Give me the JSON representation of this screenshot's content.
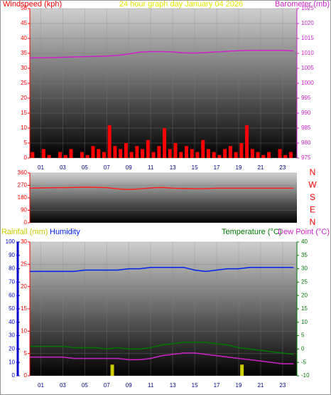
{
  "chart_data": [
    {
      "type": "combo",
      "title": "24 hour graph day   January 04 2026",
      "xlim": [
        0,
        24.3
      ],
      "xticks": [
        {
          "value": 1,
          "label": "01"
        },
        {
          "value": 3,
          "label": "03"
        },
        {
          "value": 5,
          "label": "05"
        },
        {
          "value": 7,
          "label": "07"
        },
        {
          "value": 9,
          "label": "09"
        },
        {
          "value": 11,
          "label": "11"
        },
        {
          "value": 13,
          "label": "13"
        },
        {
          "value": 15,
          "label": "15"
        },
        {
          "value": 17,
          "label": "17"
        },
        {
          "value": 19,
          "label": "19"
        },
        {
          "value": 21,
          "label": "21"
        },
        {
          "value": 23,
          "label": "23"
        }
      ],
      "ylim": [
        0,
        50
      ],
      "yticks": [
        0,
        5,
        10,
        15,
        20,
        25,
        30,
        35,
        40,
        45,
        50
      ],
      "ytick_color": "#ff0000",
      "y2lim": [
        975,
        1025
      ],
      "y2ticks": [
        975,
        980,
        985,
        990,
        995,
        1000,
        1005,
        1010,
        1015,
        1020,
        1025
      ],
      "y2tick_color": "#cc22cc",
      "grid": true,
      "series": [
        {
          "name": "Windspeed (kph)",
          "type": "bar",
          "color": "#ff0000",
          "x": [
            0.25,
            0.75,
            1.25,
            1.75,
            2.25,
            2.75,
            3.25,
            3.75,
            4.25,
            4.75,
            5.25,
            5.75,
            6.25,
            6.75,
            7.25,
            7.75,
            8.25,
            8.75,
            9.25,
            9.75,
            10.25,
            10.75,
            11.25,
            11.75,
            12.25,
            12.75,
            13.25,
            13.75,
            14.25,
            14.75,
            15.25,
            15.75,
            16.25,
            16.75,
            17.25,
            17.75,
            18.25,
            18.75,
            19.25,
            19.75,
            20.25,
            20.75,
            21.25,
            21.75,
            22.25,
            22.75,
            23.25,
            23.75
          ],
          "values": [
            2,
            0,
            3,
            1,
            0,
            2,
            1,
            3,
            0,
            2,
            1,
            4,
            3,
            2,
            11,
            4,
            3,
            5,
            2,
            4,
            3,
            6,
            2,
            4,
            10,
            3,
            5,
            2,
            4,
            3,
            2,
            6,
            3,
            2,
            1,
            3,
            4,
            2,
            5,
            11,
            3,
            2,
            1,
            2,
            0,
            3,
            1,
            2
          ]
        },
        {
          "name": "Barometer (mb)",
          "type": "line",
          "axis": "y2",
          "color": "#cc22cc",
          "x": [
            0,
            1,
            2,
            3,
            4,
            5,
            6,
            7,
            8,
            9,
            10,
            11,
            12,
            13,
            14,
            15,
            16,
            17,
            18,
            19,
            20,
            21,
            22,
            23,
            24
          ],
          "values": [
            1008.5,
            1008.5,
            1008.6,
            1008.7,
            1008.8,
            1008.9,
            1009,
            1009.1,
            1009.3,
            1009.8,
            1010.4,
            1010.6,
            1010.6,
            1010.5,
            1010.2,
            1010.1,
            1010.3,
            1010.5,
            1010.7,
            1010.9,
            1011,
            1011,
            1011,
            1011,
            1010.8
          ]
        }
      ]
    },
    {
      "type": "line",
      "xlim": [
        0,
        24.3
      ],
      "ylim": [
        0,
        360
      ],
      "yticks": [
        0,
        90,
        180,
        270,
        360
      ],
      "ytick_color": "#ff0000",
      "y2lim": [
        0,
        360
      ],
      "y2ticks": [
        {
          "value": 360,
          "label": "N"
        },
        {
          "value": 270,
          "label": "W"
        },
        {
          "value": 180,
          "label": "S"
        },
        {
          "value": 90,
          "label": "E"
        },
        {
          "value": 0,
          "label": "N"
        }
      ],
      "y2tick_color": "#ff0000",
      "grid": true,
      "series": [
        {
          "type": "line",
          "color": "#ff2020",
          "x": [
            0,
            1,
            2,
            3,
            4,
            5,
            6,
            7,
            8,
            9,
            10,
            11,
            12,
            13,
            14,
            15,
            16,
            17,
            18,
            19,
            20,
            21,
            22,
            23,
            24
          ],
          "values": [
            250,
            252,
            253,
            254,
            255,
            257,
            256,
            254,
            245,
            240,
            245,
            252,
            255,
            250,
            248,
            246,
            247,
            250,
            250,
            250,
            250,
            250,
            250,
            250,
            250
          ]
        }
      ]
    },
    {
      "type": "combo",
      "xlim": [
        0,
        24.3
      ],
      "xticks": [
        {
          "value": 1,
          "label": "01"
        },
        {
          "value": 3,
          "label": "03"
        },
        {
          "value": 5,
          "label": "05"
        },
        {
          "value": 7,
          "label": "07"
        },
        {
          "value": 9,
          "label": "09"
        },
        {
          "value": 11,
          "label": "11"
        },
        {
          "value": 13,
          "label": "13"
        },
        {
          "value": 15,
          "label": "15"
        },
        {
          "value": 17,
          "label": "17"
        },
        {
          "value": 19,
          "label": "19"
        },
        {
          "value": 21,
          "label": "21"
        },
        {
          "value": 23,
          "label": "23"
        }
      ],
      "ylim": [
        0,
        30
      ],
      "yticks": [
        0,
        5,
        10,
        15,
        20,
        25,
        30
      ],
      "ytick_color": "#ff0000",
      "y2lim": [
        -10,
        40
      ],
      "y2ticks": [
        -10,
        -5,
        0,
        5,
        10,
        15,
        20,
        25,
        30,
        35,
        40
      ],
      "y2tick_color": "#007700",
      "y3lim": [
        0,
        100
      ],
      "y3ticks": [
        0,
        10,
        20,
        30,
        40,
        50,
        60,
        70,
        80,
        90,
        100
      ],
      "y3tick_color": "#0000cc",
      "grid": true,
      "series": [
        {
          "name": "Rainfall (mm)",
          "type": "bar",
          "color": "#cccc00",
          "x": [
            7.5,
            19.3
          ],
          "values": [
            2.5,
            2.5
          ]
        },
        {
          "name": "Humidity",
          "type": "line",
          "axis": "y3",
          "color": "#0022ee",
          "x": [
            0,
            1,
            2,
            3,
            4,
            5,
            6,
            7,
            8,
            9,
            10,
            11,
            12,
            13,
            14,
            15,
            16,
            17,
            18,
            19,
            20,
            21,
            22,
            23,
            24
          ],
          "values": [
            78,
            78,
            78,
            78,
            78,
            79,
            79,
            79,
            79,
            80,
            80,
            81,
            81,
            81,
            81,
            79,
            78,
            79,
            80,
            80,
            81,
            81,
            81,
            81,
            81
          ]
        },
        {
          "name": "Temperature (°C)",
          "type": "line",
          "axis": "y2",
          "color": "#007700",
          "x": [
            0,
            1,
            2,
            3,
            4,
            5,
            6,
            7,
            8,
            9,
            10,
            11,
            12,
            13,
            14,
            15,
            16,
            17,
            18,
            19,
            20,
            21,
            22,
            23,
            24
          ],
          "values": [
            1,
            1,
            1,
            1,
            0.5,
            0.5,
            0.5,
            0,
            0.5,
            0,
            0,
            0.5,
            1.5,
            2,
            2.5,
            2.5,
            2.5,
            2,
            1.5,
            0.5,
            0,
            -0.5,
            -1,
            -1.5,
            -2
          ]
        },
        {
          "name": "Dew Point (°C)",
          "type": "line",
          "axis": "y2",
          "color": "#cc22cc",
          "x": [
            0,
            1,
            2,
            3,
            4,
            5,
            6,
            7,
            8,
            9,
            10,
            11,
            12,
            13,
            14,
            15,
            16,
            17,
            18,
            19,
            20,
            21,
            22,
            23,
            24
          ],
          "values": [
            -3,
            -3,
            -3,
            -3,
            -3.5,
            -3.5,
            -3.5,
            -3.5,
            -3.5,
            -4,
            -4,
            -3.5,
            -2.5,
            -2,
            -1.5,
            -1.5,
            -2,
            -2.5,
            -3,
            -3.5,
            -4,
            -4.5,
            -5,
            -5.5,
            -5.5
          ]
        }
      ]
    }
  ]
}
